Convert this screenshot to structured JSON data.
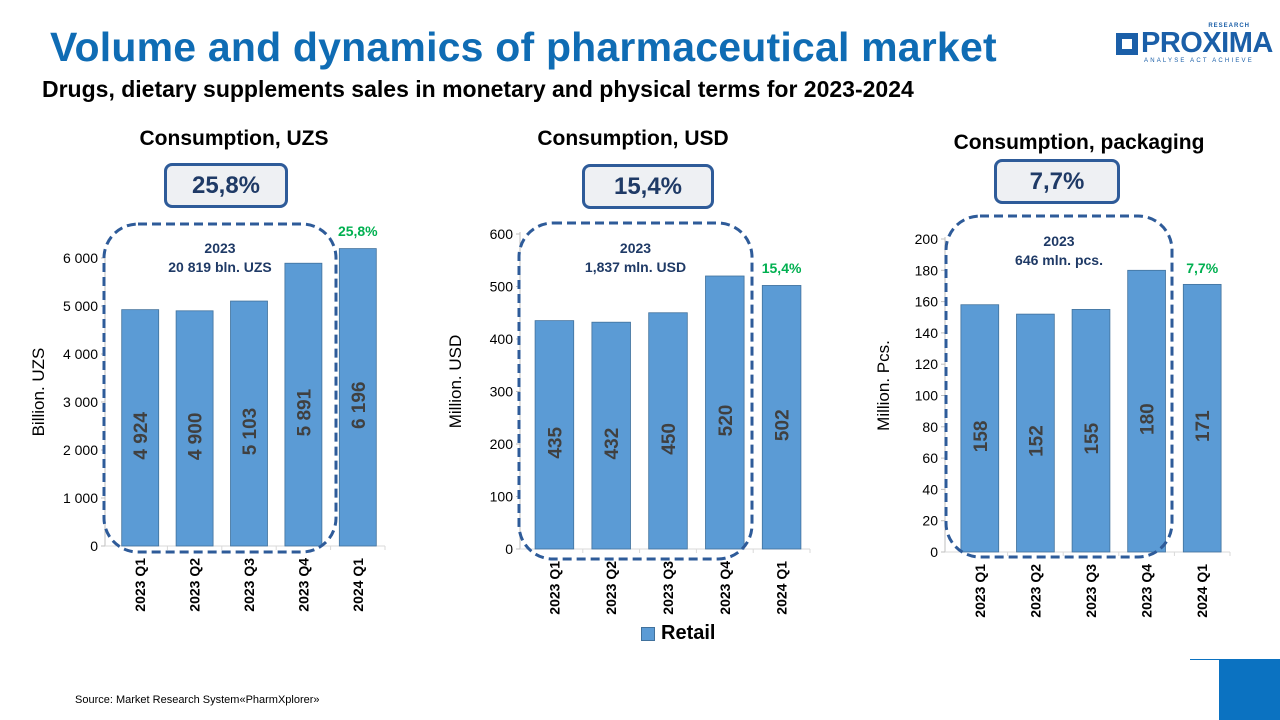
{
  "header": {
    "title": "Volume and dynamics of pharmaceutical  market",
    "subtitle": "Drugs, dietary supplements sales in monetary and physical terms for 2023-2024"
  },
  "logo": {
    "name": "PROXIMA",
    "research": "RESEARCH",
    "tagline": "ANALYSE  ACT  ACHIEVE",
    "brand_color": "#1b5fa8"
  },
  "colors": {
    "title": "#0f6cb4",
    "bar": "#5b9bd5",
    "bar_border": "#41719c",
    "growth_label": "#00b050",
    "dashed_frame": "#2e5b99"
  },
  "legend": {
    "label": "Retail"
  },
  "footer": {
    "source": "Source: Market Research System«PharmXplorer»"
  },
  "chart_data": [
    {
      "type": "bar",
      "title": "Consumption, UZS",
      "growth_box": "25,8%",
      "ylabel": "Billion. UZS",
      "ylim": [
        0,
        6000
      ],
      "yticks": [
        "0",
        "1 000",
        "2 000",
        "3 000",
        "4 000",
        "5 000",
        "6 000"
      ],
      "categories": [
        "2023 Q1",
        "2023 Q2",
        "2023 Q3",
        "2023 Q4",
        "2024 Q1"
      ],
      "series": [
        {
          "name": "Retail",
          "values": [
            4924,
            4900,
            5103,
            5891,
            6196
          ]
        }
      ],
      "bar_labels": [
        "4 924",
        "4 900",
        "5 103",
        "5 891",
        "6 196"
      ],
      "growth_label": "25,8%",
      "annotation": {
        "year": "2023",
        "total": "20 819 bln. UZS"
      }
    },
    {
      "type": "bar",
      "title": "Consumption, USD",
      "growth_box": "15,4%",
      "ylabel": "Million. USD",
      "ylim": [
        0,
        600
      ],
      "yticks": [
        "0",
        "100",
        "200",
        "300",
        "400",
        "500",
        "600"
      ],
      "categories": [
        "2023 Q1",
        "2023 Q2",
        "2023 Q3",
        "2023 Q4",
        "2024 Q1"
      ],
      "series": [
        {
          "name": "Retail",
          "values": [
            435,
            432,
            450,
            520,
            502
          ]
        }
      ],
      "bar_labels": [
        "435",
        "432",
        "450",
        "520",
        "502"
      ],
      "growth_label": "15,4%",
      "annotation": {
        "year": "2023",
        "total": "1,837 mln. USD"
      }
    },
    {
      "type": "bar",
      "title": "Consumption, packaging",
      "growth_box": "7,7%",
      "ylabel": "Million. Pcs.",
      "ylim": [
        0,
        200
      ],
      "yticks": [
        "0",
        "20",
        "40",
        "60",
        "80",
        "100",
        "120",
        "140",
        "160",
        "180",
        "200"
      ],
      "categories": [
        "2023 Q1",
        "2023 Q2",
        "2023 Q3",
        "2023 Q4",
        "2024 Q1"
      ],
      "series": [
        {
          "name": "Retail",
          "values": [
            158,
            152,
            155,
            180,
            171
          ]
        }
      ],
      "bar_labels": [
        "158",
        "152",
        "155",
        "180",
        "171"
      ],
      "growth_label": "7,7%",
      "annotation": {
        "year": "2023",
        "total": "646 mln. pcs."
      }
    }
  ]
}
